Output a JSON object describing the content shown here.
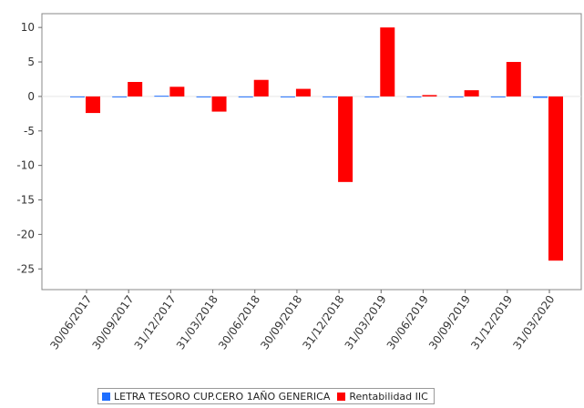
{
  "chart_data": {
    "type": "bar",
    "title": "",
    "xlabel": "",
    "ylabel": "",
    "ylim": [
      -28,
      12
    ],
    "yticks": [
      10,
      5,
      0,
      -5,
      -10,
      -15,
      -20,
      -25
    ],
    "categories": [
      "30/06/2017",
      "30/09/2017",
      "31/12/2017",
      "31/03/2018",
      "30/06/2018",
      "30/09/2018",
      "31/12/2018",
      "31/03/2019",
      "30/06/2019",
      "30/09/2019",
      "31/12/2019",
      "31/03/2020"
    ],
    "series": [
      {
        "name": "LETRA TESORO CUP.CERO 1AÑO GENERICA",
        "color": "#1f6fff",
        "values": [
          -0.1,
          0.0,
          0.1,
          -0.1,
          -0.1,
          -0.1,
          -0.1,
          -0.1,
          -0.1,
          -0.1,
          -0.1,
          -0.2
        ]
      },
      {
        "name": "Rentabilidad IIC",
        "color": "#ff0000",
        "values": [
          -2.4,
          2.1,
          1.4,
          -2.2,
          2.4,
          1.1,
          -12.4,
          10.0,
          0.2,
          0.9,
          5.0,
          -23.8
        ]
      }
    ],
    "grid": false,
    "legend_position": "bottom"
  },
  "legend": {
    "items": [
      {
        "label": "LETRA TESORO CUP.CERO 1AÑO GENERICA",
        "color": "#1f6fff"
      },
      {
        "label": "Rentabilidad IIC",
        "color": "#ff0000"
      }
    ]
  }
}
